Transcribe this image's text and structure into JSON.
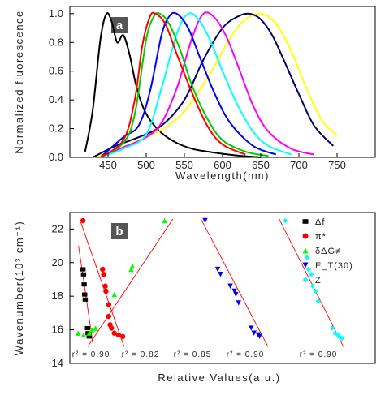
{
  "panel_a": {
    "tag": "a",
    "chart_data": {
      "type": "line",
      "xlabel": "Wavelength(nm)",
      "ylabel": "Normalized fluorescence",
      "xlim": [
        400,
        800
      ],
      "ylim": [
        0.0,
        1.05
      ],
      "xticks": [
        "450",
        "500",
        "550",
        "600",
        "650",
        "700",
        "750"
      ],
      "xtick_values": [
        450,
        500,
        550,
        600,
        650,
        700,
        750
      ],
      "yticks": [
        "0.0",
        "0.2",
        "0.4",
        "0.6",
        "0.8",
        "1.0"
      ],
      "ytick_values": [
        0.0,
        0.2,
        0.4,
        0.6,
        0.8,
        1.0
      ],
      "grid": false,
      "series": [
        {
          "color": "#000000",
          "x": [
            420,
            430,
            440,
            448,
            455,
            462,
            470,
            478,
            486,
            495,
            505,
            520,
            540,
            560,
            580,
            600,
            625,
            650
          ],
          "y": [
            0.04,
            0.33,
            0.82,
            1.0,
            0.94,
            0.8,
            0.85,
            0.72,
            0.52,
            0.36,
            0.26,
            0.17,
            0.1,
            0.06,
            0.04,
            0.025,
            0.01,
            0.0
          ]
        },
        {
          "color": "#ffff00",
          "x": [
            430,
            460,
            490,
            520,
            550,
            580,
            610,
            630,
            650,
            670,
            690,
            710,
            730,
            750
          ],
          "y": [
            0.0,
            0.05,
            0.12,
            0.19,
            0.32,
            0.55,
            0.83,
            0.96,
            1.0,
            0.93,
            0.74,
            0.48,
            0.26,
            0.15
          ]
        },
        {
          "color": "#000066",
          "x": [
            430,
            460,
            490,
            520,
            550,
            575,
            600,
            620,
            635,
            650,
            665,
            680,
            700,
            720,
            745
          ],
          "y": [
            0.0,
            0.08,
            0.14,
            0.22,
            0.4,
            0.68,
            0.9,
            0.98,
            1.0,
            0.96,
            0.85,
            0.68,
            0.44,
            0.22,
            0.08
          ]
        },
        {
          "color": "#ff00ff",
          "x": [
            440,
            470,
            500,
            520,
            540,
            560,
            575,
            590,
            605,
            620,
            640,
            660,
            690,
            720
          ],
          "y": [
            0.0,
            0.07,
            0.14,
            0.24,
            0.48,
            0.83,
            1.0,
            0.97,
            0.84,
            0.64,
            0.36,
            0.18,
            0.06,
            0.02
          ]
        },
        {
          "color": "#00ffff",
          "x": [
            440,
            470,
            500,
            520,
            540,
            555,
            570,
            585,
            600,
            620,
            640,
            660,
            690
          ],
          "y": [
            0.0,
            0.06,
            0.16,
            0.48,
            0.86,
            1.0,
            0.95,
            0.8,
            0.6,
            0.36,
            0.18,
            0.08,
            0.02
          ]
        },
        {
          "color": "#0000ff",
          "x": [
            440,
            470,
            490,
            505,
            520,
            530,
            540,
            555,
            570,
            590,
            610,
            640,
            670
          ],
          "y": [
            0.0,
            0.14,
            0.22,
            0.46,
            0.85,
            0.98,
            1.0,
            0.9,
            0.7,
            0.44,
            0.24,
            0.08,
            0.02
          ]
        },
        {
          "color": "#00cc00",
          "x": [
            440,
            470,
            485,
            500,
            510,
            518,
            530,
            545,
            560,
            580,
            600,
            630,
            660
          ],
          "y": [
            0.0,
            0.1,
            0.3,
            0.82,
            0.98,
            1.0,
            0.93,
            0.74,
            0.5,
            0.27,
            0.12,
            0.04,
            0.01
          ]
        },
        {
          "color": "#ff0000",
          "x": [
            440,
            470,
            485,
            495,
            505,
            512,
            525,
            540,
            560,
            580,
            600,
            630
          ],
          "y": [
            0.0,
            0.12,
            0.4,
            0.78,
            0.98,
            1.0,
            0.93,
            0.72,
            0.45,
            0.22,
            0.09,
            0.02
          ]
        }
      ]
    }
  },
  "panel_b": {
    "tag": "b",
    "chart_data": {
      "type": "scatter",
      "xlabel": "Relative Values(a.u.)",
      "ylabel": "Wavenumber(10³ cm⁻¹)",
      "xlim": [
        0,
        1
      ],
      "ylim": [
        14,
        22.5
      ],
      "yticks": [
        "14",
        "16",
        "18",
        "20",
        "22"
      ],
      "ytick_values": [
        14,
        16,
        18,
        20,
        22
      ],
      "grid": false,
      "legend_position": "right",
      "legend": [
        {
          "label": "Δf",
          "marker": "square",
          "color": "#000000"
        },
        {
          "label": "π*",
          "marker": "circle",
          "color": "#ff0000"
        },
        {
          "label": "δΔG≠",
          "marker": "triangle-up",
          "color": "#00ff00"
        },
        {
          "label": "E_T(30)",
          "marker": "triangle-down",
          "color": "#0000ff"
        },
        {
          "label": "Z",
          "marker": "diamond",
          "color": "#00ffff"
        }
      ],
      "r2_labels": [
        "r² = 0.90",
        "r² = 0.82",
        "r² = 0.85",
        "r² = 0.90",
        "r² = 0.90"
      ],
      "series": [
        {
          "name": "Δf",
          "color": "#000000",
          "marker": "square",
          "x": [
            0.018,
            0.02,
            0.022,
            0.024,
            0.026,
            0.034,
            0.036,
            0.04
          ],
          "y": [
            19.6,
            19.3,
            18.7,
            18.1,
            17.8,
            16.1,
            15.8,
            15.6
          ],
          "fit": [
            [
              0.002,
              21.0
            ],
            [
              0.055,
              15.0
            ]
          ]
        },
        {
          "name": "π*",
          "color": "#ff0000",
          "marker": "circle",
          "x": [
            0.018,
            0.088,
            0.092,
            0.098,
            0.1,
            0.11,
            0.11,
            0.115,
            0.12,
            0.13,
            0.145,
            0.16
          ],
          "y": [
            22.5,
            19.6,
            19.3,
            18.6,
            18.3,
            17.5,
            16.8,
            16.3,
            16.1,
            15.8,
            15.7,
            15.6
          ],
          "fit": [
            [
              0.01,
              22.4
            ],
            [
              0.165,
              15.0
            ]
          ]
        },
        {
          "name": "δΔG≠",
          "color": "#00ff00",
          "marker": "triangle-up",
          "x": [
            0.0,
            0.02,
            0.04,
            0.05,
            0.063,
            0.13,
            0.19,
            0.195,
            0.31
          ],
          "y": [
            15.8,
            15.7,
            15.8,
            16.0,
            16.1,
            18.1,
            19.6,
            19.8,
            22.5
          ],
          "fit": [
            [
              0.035,
              15.0
            ],
            [
              0.34,
              22.6
            ]
          ]
        },
        {
          "name": "E_T(30)",
          "color": "#0000ff",
          "marker": "triangle-down",
          "x": [
            0.455,
            0.5,
            0.51,
            0.545,
            0.56,
            0.565,
            0.575,
            0.62,
            0.63,
            0.645,
            0.65
          ],
          "y": [
            22.5,
            19.6,
            19.3,
            18.6,
            18.3,
            18.1,
            17.6,
            16.1,
            15.8,
            15.7,
            15.6
          ],
          "fit": [
            [
              0.44,
              22.6
            ],
            [
              0.68,
              15.0
            ]
          ]
        },
        {
          "name": "Z",
          "color": "#00ffff",
          "marker": "diamond",
          "x": [
            0.742,
            0.82,
            0.825,
            0.835,
            0.84,
            0.85,
            0.86,
            0.91,
            0.92,
            0.93,
            0.935,
            0.945
          ],
          "y": [
            22.5,
            20.3,
            19.6,
            19.3,
            18.6,
            18.3,
            17.7,
            16.1,
            15.8,
            15.7,
            15.6,
            15.5
          ],
          "fit": [
            [
              0.72,
              22.6
            ],
            [
              0.95,
              15.0
            ]
          ]
        }
      ]
    }
  }
}
